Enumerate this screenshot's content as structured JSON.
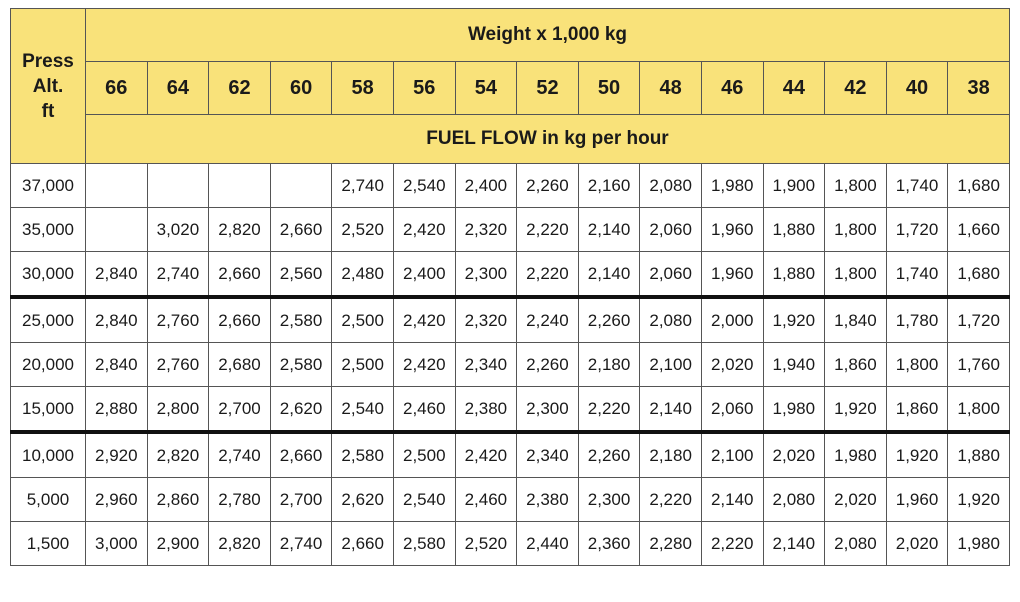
{
  "header": {
    "corner_label": [
      "Press",
      "Alt.",
      "ft"
    ],
    "weight_title": "Weight x 1,000 kg",
    "fuel_flow_title": "FUEL FLOW in kg per hour",
    "weights": [
      "66",
      "64",
      "62",
      "60",
      "58",
      "56",
      "54",
      "52",
      "50",
      "48",
      "46",
      "44",
      "42",
      "40",
      "38"
    ]
  },
  "rows": [
    {
      "alt": "37,000",
      "values": [
        "",
        "",
        "",
        "",
        "2,740",
        "2,540",
        "2,400",
        "2,260",
        "2,160",
        "2,080",
        "1,980",
        "1,900",
        "1,800",
        "1,740",
        "1,680"
      ]
    },
    {
      "alt": "35,000",
      "values": [
        "",
        "3,020",
        "2,820",
        "2,660",
        "2,520",
        "2,420",
        "2,320",
        "2,220",
        "2,140",
        "2,060",
        "1,960",
        "1,880",
        "1,800",
        "1,720",
        "1,660"
      ]
    },
    {
      "alt": "30,000",
      "values": [
        "2,840",
        "2,740",
        "2,660",
        "2,560",
        "2,480",
        "2,400",
        "2,300",
        "2,220",
        "2,140",
        "2,060",
        "1,960",
        "1,880",
        "1,800",
        "1,740",
        "1,680"
      ]
    },
    {
      "alt": "25,000",
      "values": [
        "2,840",
        "2,760",
        "2,660",
        "2,580",
        "2,500",
        "2,420",
        "2,320",
        "2,240",
        "2,260",
        "2,080",
        "2,000",
        "1,920",
        "1,840",
        "1,780",
        "1,720"
      ]
    },
    {
      "alt": "20,000",
      "values": [
        "2,840",
        "2,760",
        "2,680",
        "2,580",
        "2,500",
        "2,420",
        "2,340",
        "2,260",
        "2,180",
        "2,100",
        "2,020",
        "1,940",
        "1,860",
        "1,800",
        "1,760"
      ]
    },
    {
      "alt": "15,000",
      "values": [
        "2,880",
        "2,800",
        "2,700",
        "2,620",
        "2,540",
        "2,460",
        "2,380",
        "2,300",
        "2,220",
        "2,140",
        "2,060",
        "1,980",
        "1,920",
        "1,860",
        "1,800"
      ]
    },
    {
      "alt": "10,000",
      "values": [
        "2,920",
        "2,820",
        "2,740",
        "2,660",
        "2,580",
        "2,500",
        "2,420",
        "2,340",
        "2,260",
        "2,180",
        "2,100",
        "2,020",
        "1,980",
        "1,920",
        "1,880"
      ]
    },
    {
      "alt": "5,000",
      "values": [
        "2,960",
        "2,860",
        "2,780",
        "2,700",
        "2,620",
        "2,540",
        "2,460",
        "2,380",
        "2,300",
        "2,220",
        "2,140",
        "2,080",
        "2,020",
        "1,960",
        "1,920"
      ]
    },
    {
      "alt": "1,500",
      "values": [
        "3,000",
        "2,900",
        "2,820",
        "2,740",
        "2,660",
        "2,580",
        "2,520",
        "2,440",
        "2,360",
        "2,280",
        "2,220",
        "2,140",
        "2,080",
        "2,020",
        "1,980"
      ]
    }
  ],
  "colors": {
    "header_bg": "#f9e27a",
    "group_divider": "#111111"
  }
}
